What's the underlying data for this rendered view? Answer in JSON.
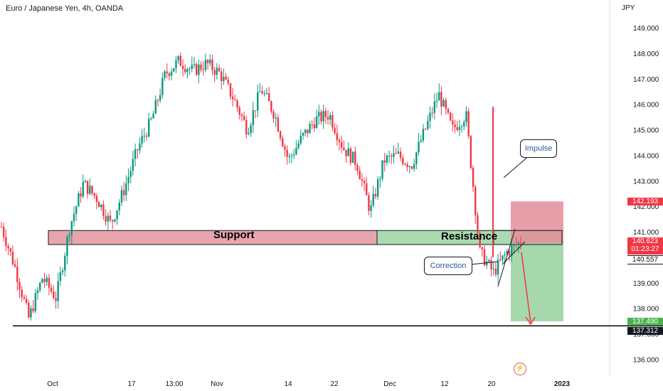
{
  "header": {
    "symbol_title": "Euro / Japanese Yen, 4h, OANDA",
    "currency": "JPY"
  },
  "annotations": {
    "support_label": "Support",
    "resistance_label": "Resistance",
    "impulse_label": "Impulse",
    "correction_label": "Correction"
  },
  "price_badges": {
    "target": "142.193",
    "last_price": "140.623",
    "countdown": "01:23:27",
    "entry": "140.557",
    "stop": "137.490",
    "baseline": "137.312"
  },
  "colors": {
    "up": "#089981",
    "down": "#f23645",
    "support_zone": "#e8a5ae",
    "resistance_zone": "#a9dbb0",
    "risk_zone": "#e48d99",
    "reward_zone": "#9dd3a4",
    "arrow": "#f23645"
  },
  "chart_data": {
    "type": "candlestick",
    "title": "Euro / Japanese Yen, 4h, OANDA",
    "ylabel": "JPY",
    "ylim": [
      135.5,
      149.6
    ],
    "y_ticks": [
      "136.000",
      "137.000",
      "138.000",
      "139.000",
      "140.000",
      "141.000",
      "142.000",
      "143.000",
      "144.000",
      "145.000",
      "146.000",
      "147.000",
      "148.000",
      "149.000"
    ],
    "x_ticks": [
      "Oct",
      "17",
      "13:00",
      "Nov",
      "14",
      "22",
      "Dec",
      "12",
      "20",
      "2023"
    ],
    "price_path": [
      {
        "x": "Sep 26",
        "y": 141.2
      },
      {
        "x": "Sep 27",
        "y": 139.6
      },
      {
        "x": "Sep 28",
        "y": 137.6
      },
      {
        "x": "Sep 29",
        "y": 139.2
      },
      {
        "x": "Sep 30",
        "y": 138.4
      },
      {
        "x": "Oct 3",
        "y": 141.2
      },
      {
        "x": "Oct 5",
        "y": 142.9
      },
      {
        "x": "Oct 7",
        "y": 142.3
      },
      {
        "x": "Oct 10",
        "y": 141.3
      },
      {
        "x": "Oct 12",
        "y": 142.7
      },
      {
        "x": "Oct 14",
        "y": 144.3
      },
      {
        "x": "Oct 17",
        "y": 145.4
      },
      {
        "x": "Oct 19",
        "y": 147.2
      },
      {
        "x": "Oct 21",
        "y": 147.7
      },
      {
        "x": "Oct 24",
        "y": 147.3
      },
      {
        "x": "Oct 26",
        "y": 147.6
      },
      {
        "x": "Oct 28",
        "y": 147.2
      },
      {
        "x": "Oct 31",
        "y": 146.2
      },
      {
        "x": "Nov 3",
        "y": 145.0
      },
      {
        "x": "Nov 7",
        "y": 146.6
      },
      {
        "x": "Nov 9",
        "y": 145.6
      },
      {
        "x": "Nov 11",
        "y": 143.8
      },
      {
        "x": "Nov 15",
        "y": 144.7
      },
      {
        "x": "Nov 18",
        "y": 145.4
      },
      {
        "x": "Nov 22",
        "y": 145.6
      },
      {
        "x": "Nov 24",
        "y": 144.3
      },
      {
        "x": "Nov 28",
        "y": 143.7
      },
      {
        "x": "Dec 1",
        "y": 141.8
      },
      {
        "x": "Dec 5",
        "y": 143.8
      },
      {
        "x": "Dec 7",
        "y": 144.0
      },
      {
        "x": "Dec 9",
        "y": 143.6
      },
      {
        "x": "Dec 12",
        "y": 145.0
      },
      {
        "x": "Dec 14",
        "y": 146.4
      },
      {
        "x": "Dec 15",
        "y": 145.0
      },
      {
        "x": "Dec 16",
        "y": 145.6
      },
      {
        "x": "Dec 19",
        "y": 140.2
      },
      {
        "x": "Dec 20",
        "y": 139.4
      },
      {
        "x": "Dec 21",
        "y": 140.2
      },
      {
        "x": "Dec 22",
        "y": 140.6
      }
    ],
    "support_zone": {
      "low": 140.5,
      "high": 141.05
    },
    "risk_zone": {
      "low": 140.55,
      "high": 142.19
    },
    "reward_zone": {
      "low": 137.49,
      "high": 140.55
    },
    "baseline_level": 137.312
  }
}
